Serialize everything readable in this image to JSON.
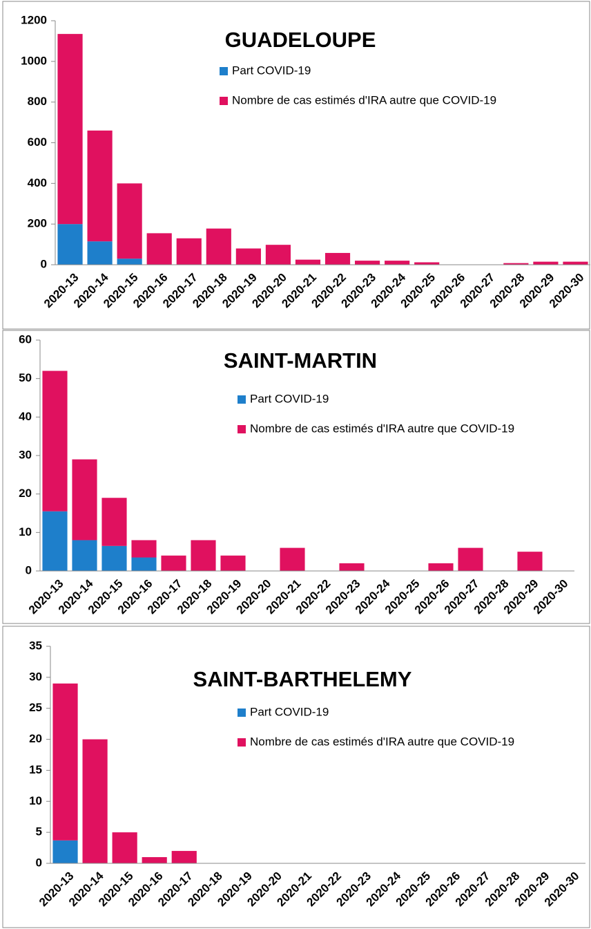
{
  "chart_data": [
    {
      "type": "bar",
      "stacked": true,
      "title": "GUADELOUPE",
      "categories": [
        "2020-13",
        "2020-14",
        "2020-15",
        "2020-16",
        "2020-17",
        "2020-18",
        "2020-19",
        "2020-20",
        "2020-21",
        "2020-22",
        "2020-23",
        "2020-24",
        "2020-25",
        "2020-26",
        "2020-27",
        "2020-28",
        "2020-29",
        "2020-30"
      ],
      "series": [
        {
          "name": "Part COVID-19",
          "color": "#1e7fcb",
          "values": [
            200,
            115,
            30,
            0,
            0,
            0,
            0,
            0,
            0,
            0,
            0,
            0,
            0,
            0,
            0,
            0,
            0,
            0
          ]
        },
        {
          "name": "Nombre de cas estimés d'IRA autre que COVID-19",
          "color": "#e0115f",
          "values": [
            935,
            545,
            370,
            155,
            130,
            178,
            80,
            98,
            25,
            58,
            20,
            20,
            12,
            0,
            0,
            8,
            15,
            15
          ]
        }
      ],
      "ylim": [
        0,
        1200
      ],
      "yticks": [
        0,
        200,
        400,
        600,
        800,
        1000,
        1200
      ]
    },
    {
      "type": "bar",
      "stacked": true,
      "title": "SAINT-MARTIN",
      "categories": [
        "2020-13",
        "2020-14",
        "2020-15",
        "2020-16",
        "2020-17",
        "2020-18",
        "2020-19",
        "2020-20",
        "2020-21",
        "2020-22",
        "2020-23",
        "2020-24",
        "2020-25",
        "2020-26",
        "2020-27",
        "2020-28",
        "2020-29",
        "2020-30"
      ],
      "series": [
        {
          "name": "Part COVID-19",
          "color": "#1e7fcb",
          "values": [
            15.5,
            8,
            6.5,
            3.5,
            0,
            0,
            0,
            0,
            0,
            0,
            0,
            0,
            0,
            0,
            0,
            0,
            0,
            0
          ]
        },
        {
          "name": "Nombre de cas estimés d'IRA autre que COVID-19",
          "color": "#e0115f",
          "values": [
            36.5,
            21,
            12.5,
            4.5,
            4,
            8,
            4,
            0,
            6,
            0,
            2,
            0,
            0,
            2,
            6,
            0,
            5,
            0
          ]
        }
      ],
      "ylim": [
        0,
        60
      ],
      "yticks": [
        0,
        10,
        20,
        30,
        40,
        50,
        60
      ]
    },
    {
      "type": "bar",
      "stacked": true,
      "title": "SAINT-BARTHELEMY",
      "categories": [
        "2020-13",
        "2020-14",
        "2020-15",
        "2020-16",
        "2020-17",
        "2020-18",
        "2020-19",
        "2020-20",
        "2020-21",
        "2020-22",
        "2020-23",
        "2020-24",
        "2020-25",
        "2020-26",
        "2020-27",
        "2020-28",
        "2020-29",
        "2020-30"
      ],
      "series": [
        {
          "name": "Part COVID-19",
          "color": "#1e7fcb",
          "values": [
            3.7,
            0,
            0,
            0,
            0,
            0,
            0,
            0,
            0,
            0,
            0,
            0,
            0,
            0,
            0,
            0,
            0,
            0
          ]
        },
        {
          "name": "Nombre de cas estimés d'IRA autre que COVID-19",
          "color": "#e0115f",
          "values": [
            25.3,
            20,
            5,
            1,
            2,
            0,
            0,
            0,
            0,
            0,
            0,
            0,
            0,
            0,
            0,
            0,
            0,
            0
          ]
        }
      ],
      "ylim": [
        0,
        35
      ],
      "yticks": [
        0,
        5,
        10,
        15,
        20,
        25,
        30,
        35
      ]
    }
  ]
}
